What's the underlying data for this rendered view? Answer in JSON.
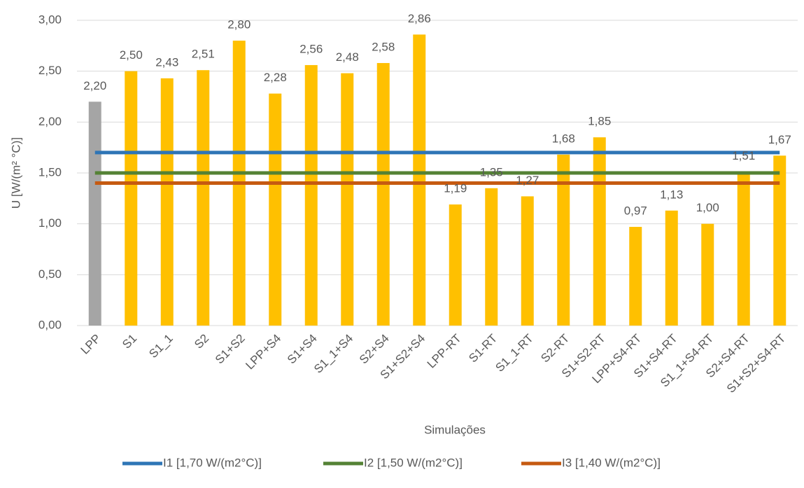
{
  "chart_data": {
    "type": "bar",
    "xlabel": "Simulações",
    "ylabel": "U [W/(m² °C)]",
    "categories": [
      "LPP",
      "S1",
      "S1_1",
      "S2",
      "S1+S2",
      "LPP+S4",
      "S1+S4",
      "S1_1+S4",
      "S2+S4",
      "S1+S2+S4",
      "LPP-RT",
      "S1-RT",
      "S1_1-RT",
      "S2-RT",
      "S1+S2-RT",
      "LPP+S4-RT",
      "S1+S4-RT",
      "S1_1+S4-RT",
      "S2+S4-RT",
      "S1+S2+S4-RT"
    ],
    "values": [
      2.2,
      2.5,
      2.43,
      2.51,
      2.8,
      2.28,
      2.56,
      2.48,
      2.58,
      2.86,
      1.19,
      1.35,
      1.27,
      1.68,
      1.85,
      0.97,
      1.13,
      1.0,
      1.51,
      1.67
    ],
    "value_labels": [
      "2,20",
      "2,50",
      "2,43",
      "2,51",
      "2,80",
      "2,28",
      "2,56",
      "2,48",
      "2,58",
      "2,86",
      "1,19",
      "1,35",
      "1,27",
      "1,68",
      "1,85",
      "0,97",
      "1,13",
      "1,00",
      "1,51",
      "1,67"
    ],
    "colors": [
      "#a5a5a5",
      "#ffc000",
      "#ffc000",
      "#ffc000",
      "#ffc000",
      "#ffc000",
      "#ffc000",
      "#ffc000",
      "#ffc000",
      "#ffc000",
      "#ffc000",
      "#ffc000",
      "#ffc000",
      "#ffc000",
      "#ffc000",
      "#ffc000",
      "#ffc000",
      "#ffc000",
      "#ffc000",
      "#ffc000"
    ],
    "series": [
      {
        "name": "I1 [1,70 W/(m2°C)]",
        "type": "line",
        "color": "#2e75b6",
        "values": [
          1.7,
          1.7,
          1.7,
          1.7,
          1.7,
          1.7,
          1.7,
          1.7,
          1.7,
          1.7,
          1.7,
          1.7,
          1.7,
          1.7,
          1.7,
          1.7,
          1.7,
          1.7,
          1.7,
          1.7
        ]
      },
      {
        "name": "I2 [1,50 W/(m2°C)]",
        "type": "line",
        "color": "#548235",
        "values": [
          1.5,
          1.5,
          1.5,
          1.5,
          1.5,
          1.5,
          1.5,
          1.5,
          1.5,
          1.5,
          1.5,
          1.5,
          1.5,
          1.5,
          1.5,
          1.5,
          1.5,
          1.5,
          1.5,
          1.5
        ]
      },
      {
        "name": "I3 [1,40 W/(m2°C)]",
        "type": "line",
        "color": "#c55a11",
        "values": [
          1.4,
          1.4,
          1.4,
          1.4,
          1.4,
          1.4,
          1.4,
          1.4,
          1.4,
          1.4,
          1.4,
          1.4,
          1.4,
          1.4,
          1.4,
          1.4,
          1.4,
          1.4,
          1.4,
          1.4
        ]
      }
    ],
    "ylim": [
      0,
      3
    ],
    "yticks": [
      {
        "value": 0,
        "label": "0,00"
      },
      {
        "value": 0.5,
        "label": "0,50"
      },
      {
        "value": 1,
        "label": "1,00"
      },
      {
        "value": 1.5,
        "label": "1,50"
      },
      {
        "value": 2,
        "label": "2,00"
      },
      {
        "value": 2.5,
        "label": "2,50"
      },
      {
        "value": 3,
        "label": "3,00"
      }
    ],
    "grid": true,
    "legend": "bottom"
  }
}
